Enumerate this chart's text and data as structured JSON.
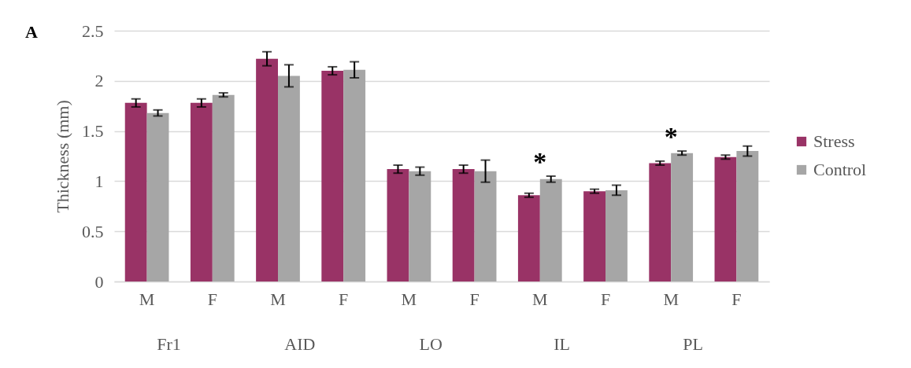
{
  "chart_data": {
    "type": "bar",
    "ylabel": "Thickness (mm)",
    "categories": [
      "M",
      "F",
      "M",
      "F",
      "M",
      "F",
      "M",
      "F",
      "M",
      "F"
    ],
    "series": [
      {
        "name": "Stress",
        "color": "#993366",
        "values": [
          1.78,
          1.78,
          2.22,
          2.1,
          1.12,
          1.12,
          0.86,
          0.9,
          1.18,
          1.24
        ],
        "errors": [
          0.04,
          0.04,
          0.07,
          0.04,
          0.04,
          0.04,
          0.02,
          0.02,
          0.02,
          0.02
        ]
      },
      {
        "name": "Control",
        "color": "#a6a6a6",
        "values": [
          1.68,
          1.86,
          2.05,
          2.11,
          1.1,
          1.1,
          1.02,
          0.91,
          1.28,
          1.3
        ],
        "errors": [
          0.03,
          0.02,
          0.11,
          0.08,
          0.04,
          0.11,
          0.03,
          0.05,
          0.02,
          0.05
        ]
      }
    ],
    "ylim": [
      0,
      2.5
    ],
    "yticks": [
      0,
      0.5,
      1,
      1.5,
      2,
      2.5
    ],
    "grid": "y",
    "legend": "right",
    "annotations": [
      "A",
      "Fr1",
      "AID",
      "LO",
      "IL",
      "PL",
      "*",
      "*"
    ]
  }
}
